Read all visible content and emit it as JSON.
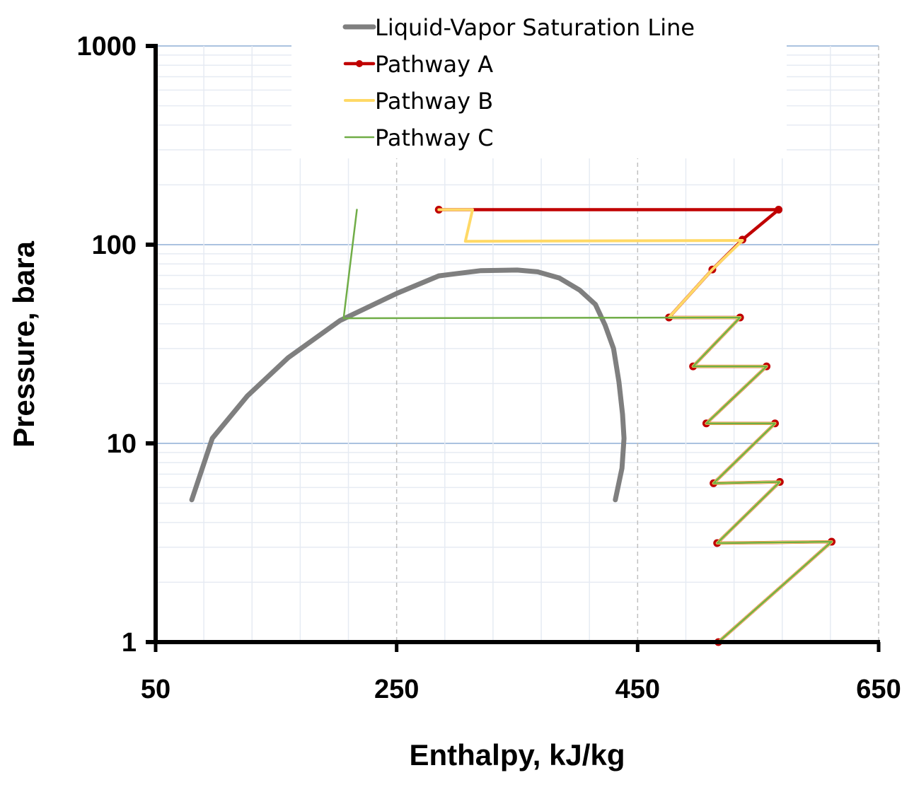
{
  "chart_data": {
    "type": "line",
    "title": "",
    "xlabel": "Enthalpy, kJ/kg",
    "ylabel": "Pressure, bara",
    "xlim": [
      50,
      650
    ],
    "ylim": [
      1,
      1000
    ],
    "yscale": "log",
    "x_ticks": [
      50,
      250,
      450,
      650
    ],
    "x_tick_labels": [
      "50",
      "250",
      "450",
      "650"
    ],
    "x_minor_step": 40,
    "y_ticks": [
      1,
      10,
      100,
      1000
    ],
    "y_tick_labels": [
      "1",
      "10",
      "100",
      "1000"
    ],
    "grid": true,
    "legend_placement": "top",
    "series": [
      {
        "name": "Liquid-Vapor Saturation Line",
        "color": "#7f7f7f",
        "markers": false,
        "points": [
          [
            80,
            5.2
          ],
          [
            97,
            10.6
          ],
          [
            126,
            17.3
          ],
          [
            160,
            27
          ],
          [
            203,
            41.5
          ],
          [
            250,
            56.8
          ],
          [
            285,
            69.7
          ],
          [
            320,
            74
          ],
          [
            350,
            74.5
          ],
          [
            367,
            73
          ],
          [
            385,
            68
          ],
          [
            402,
            59
          ],
          [
            415,
            50
          ],
          [
            423,
            39.4
          ],
          [
            430,
            30
          ],
          [
            434.5,
            20.4
          ],
          [
            437.5,
            14
          ],
          [
            438.7,
            10.6
          ],
          [
            437,
            7.5
          ],
          [
            431.5,
            5.2
          ]
        ]
      },
      {
        "name": "Pathway A",
        "color": "#c00000",
        "markers": true,
        "points": [
          [
            285,
            150
          ],
          [
            567,
            150
          ],
          [
            537,
            106
          ],
          [
            512,
            75
          ],
          [
            476,
            43
          ],
          [
            535,
            43
          ],
          [
            496,
            24.4
          ],
          [
            557,
            24.4
          ],
          [
            507,
            12.6
          ],
          [
            564,
            12.6
          ],
          [
            513,
            6.3
          ],
          [
            568,
            6.4
          ],
          [
            516,
            3.15
          ],
          [
            611,
            3.2
          ],
          [
            517,
            1
          ]
        ]
      },
      {
        "name": "Pathway B",
        "color": "#ffd966",
        "markers": false,
        "points": [
          [
            285,
            150
          ],
          [
            313,
            150
          ],
          [
            307,
            104
          ],
          [
            537,
            105
          ],
          [
            512,
            75
          ],
          [
            476,
            43
          ],
          [
            535,
            43
          ],
          [
            496,
            24.4
          ],
          [
            557,
            24.4
          ],
          [
            507,
            12.6
          ],
          [
            564,
            12.6
          ],
          [
            513,
            6.3
          ],
          [
            568,
            6.4
          ],
          [
            516,
            3.15
          ],
          [
            611,
            3.2
          ],
          [
            517,
            1
          ]
        ]
      },
      {
        "name": "Pathway C",
        "color": "#70ad47",
        "markers": false,
        "points": [
          [
            217,
            150
          ],
          [
            206,
            42.6
          ],
          [
            535,
            43
          ],
          [
            496,
            24.4
          ],
          [
            557,
            24.4
          ],
          [
            507,
            12.6
          ],
          [
            564,
            12.6
          ],
          [
            513,
            6.3
          ],
          [
            568,
            6.4
          ],
          [
            516,
            3.15
          ],
          [
            611,
            3.2
          ],
          [
            517,
            1
          ]
        ]
      }
    ]
  }
}
